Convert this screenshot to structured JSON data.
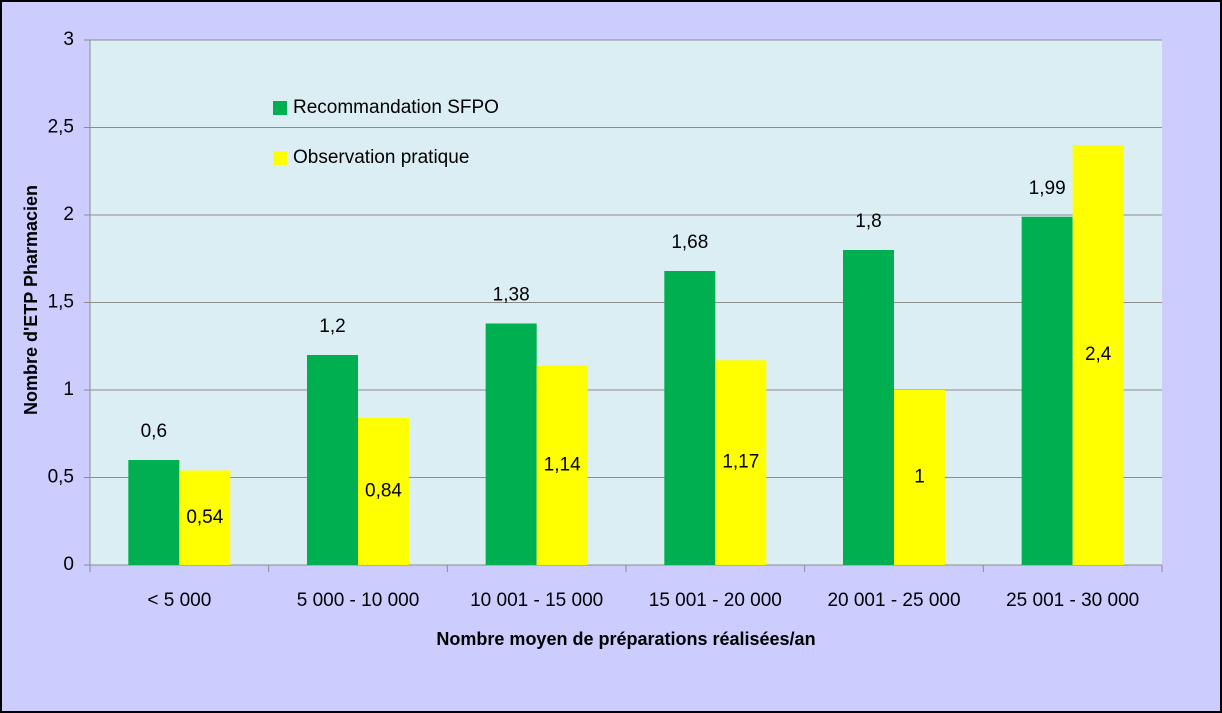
{
  "chart_data": {
    "type": "bar",
    "y_label": "Nombre d'ETP Pharmacien",
    "x_label": "Nombre moyen de préparations réalisées/an",
    "categories": [
      "< 5 000",
      "5 000 - 10 000",
      "10 001 - 15 000",
      "15 001 - 20 000",
      "20 001 - 25 000",
      "25 001 - 30 000"
    ],
    "series": [
      {
        "name": "Recommandation SFPO",
        "color": "#00b050",
        "values": [
          0.6,
          1.2,
          1.38,
          1.68,
          1.8,
          1.99
        ],
        "value_labels": [
          "0,6",
          "1,2",
          "1,38",
          "1,68",
          "1,8",
          "1,99"
        ]
      },
      {
        "name": "Observation pratique",
        "color": "#ffff00",
        "values": [
          0.54,
          0.84,
          1.14,
          1.17,
          1,
          2.4
        ],
        "value_labels": [
          "0,54",
          "0,84",
          "1,14",
          "1,17",
          "1",
          "2,4"
        ]
      }
    ],
    "ylim": [
      0,
      3
    ],
    "yticks": [
      0,
      {
        "value": 0.5,
        "label": "0,5"
      },
      1,
      {
        "value": 1.5,
        "label": "1,5"
      },
      2,
      {
        "value": 2.5,
        "label": "2,5"
      },
      3
    ],
    "grid": true
  }
}
